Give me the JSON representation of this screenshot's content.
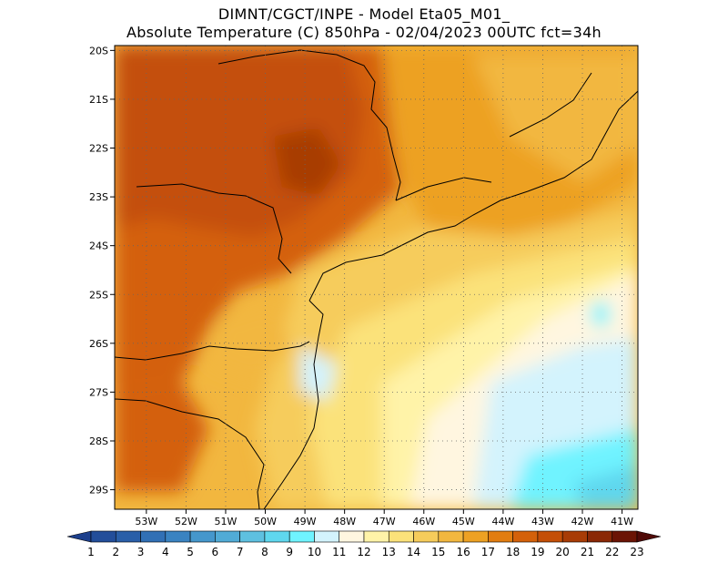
{
  "title_line1": "DIMNT/CGCT/INPE -  Model Eta05_M01_",
  "title_line2": "Absolute Temperature (C) 850hPa -  02/04/2023 00UTC fct=34h",
  "chart_data": {
    "type": "heatmap",
    "variable": "Absolute Temperature (C) 850hPa",
    "lon_range": [
      -53.8,
      -40.6
    ],
    "lat_range": [
      -29.4,
      -19.9
    ],
    "lat_ticks": [
      "20S",
      "21S",
      "22S",
      "23S",
      "24S",
      "25S",
      "26S",
      "27S",
      "28S",
      "29S"
    ],
    "lat_tick_values": [
      -20,
      -21,
      -22,
      -23,
      -24,
      -25,
      -26,
      -27,
      -28,
      -29
    ],
    "lon_ticks": [
      "53W",
      "52W",
      "51W",
      "50W",
      "49W",
      "48W",
      "47W",
      "46W",
      "45W",
      "44W",
      "43W",
      "42W",
      "41W"
    ],
    "lon_tick_values": [
      -53,
      -52,
      -51,
      -50,
      -49,
      -48,
      -47,
      -46,
      -45,
      -44,
      -43,
      -42,
      -41
    ],
    "grid": true,
    "colorbar": {
      "labels": [
        "1",
        "2",
        "3",
        "4",
        "5",
        "6",
        "7",
        "8",
        "9",
        "10",
        "11",
        "12",
        "13",
        "14",
        "15",
        "16",
        "17",
        "18",
        "19",
        "20",
        "21",
        "22",
        "23"
      ],
      "colors": [
        "#1c3f8c",
        "#234e9a",
        "#2a5fa8",
        "#3170b5",
        "#3a83c1",
        "#4597cc",
        "#51abd6",
        "#5ec0e0",
        "#5fd7ee",
        "#6ff3ff",
        "#d3f3fd",
        "#fff6e0",
        "#fff3a8",
        "#fbe27a",
        "#f6cc5b",
        "#f2b73f",
        "#eda123",
        "#e27d10",
        "#d4610a",
        "#c44f07",
        "#a83c06",
        "#8a2806",
        "#6b1405",
        "#500a08"
      ]
    }
  }
}
